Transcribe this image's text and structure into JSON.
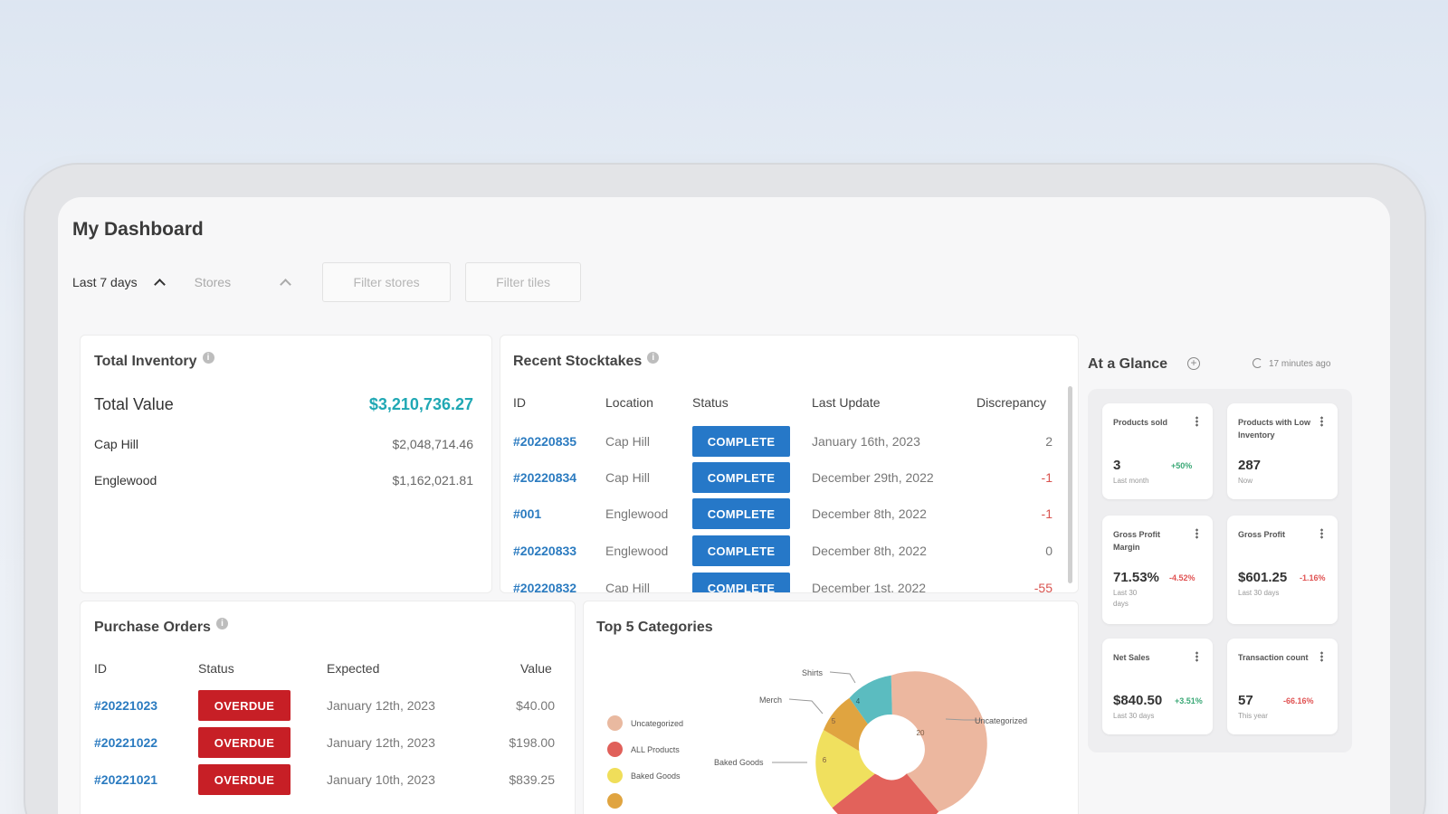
{
  "page_title": "My Dashboard",
  "filters": {
    "date_range": "Last 7 days",
    "stores_dropdown": "Stores",
    "filter_stores_placeholder": "Filter stores",
    "filter_tiles_placeholder": "Filter tiles"
  },
  "total_inventory": {
    "title": "Total Inventory",
    "total_label": "Total Value",
    "total_value": "$3,210,736.27",
    "rows": [
      {
        "name": "Cap Hill",
        "value": "$2,048,714.46"
      },
      {
        "name": "Englewood",
        "value": "$1,162,021.81"
      }
    ]
  },
  "recent_stocktakes": {
    "title": "Recent Stocktakes",
    "headers": {
      "id": "ID",
      "location": "Location",
      "status": "Status",
      "last_update": "Last Update",
      "discrepancy": "Discrepancy"
    },
    "rows": [
      {
        "id": "#20220835",
        "location": "Cap Hill",
        "status": "COMPLETE",
        "last_update": "January 16th, 2023",
        "discrepancy": "2"
      },
      {
        "id": "#20220834",
        "location": "Cap Hill",
        "status": "COMPLETE",
        "last_update": "December 29th, 2022",
        "discrepancy": "-1"
      },
      {
        "id": "#001",
        "location": "Englewood",
        "status": "COMPLETE",
        "last_update": "December 8th, 2022",
        "discrepancy": "-1"
      },
      {
        "id": "#20220833",
        "location": "Englewood",
        "status": "COMPLETE",
        "last_update": "December 8th, 2022",
        "discrepancy": "0"
      },
      {
        "id": "#20220832",
        "location": "Cap Hill",
        "status": "COMPLETE",
        "last_update": "December 1st, 2022",
        "discrepancy": "-55"
      }
    ]
  },
  "purchase_orders": {
    "title": "Purchase Orders",
    "headers": {
      "id": "ID",
      "status": "Status",
      "expected": "Expected",
      "value": "Value"
    },
    "rows": [
      {
        "id": "#20221023",
        "status": "OVERDUE",
        "expected": "January 12th, 2023",
        "value": "$40.00"
      },
      {
        "id": "#20221022",
        "status": "OVERDUE",
        "expected": "January 12th, 2023",
        "value": "$198.00"
      },
      {
        "id": "#20221021",
        "status": "OVERDUE",
        "expected": "January 10th, 2023",
        "value": "$839.25"
      }
    ]
  },
  "top_categories": {
    "title": "Top 5 Categories",
    "legend": [
      {
        "label": "Uncategorized",
        "color": "#e9b9a0"
      },
      {
        "label": "ALL Products",
        "color": "#e0605a"
      },
      {
        "label": "Baked Goods",
        "color": "#f0de5a"
      }
    ],
    "callouts": {
      "shirts": "Shirts",
      "merch": "Merch",
      "baked_goods": "Baked Goods",
      "uncategorized": "Uncategorized"
    },
    "segment_labels": {
      "uncategorized": "20",
      "shirts": "4",
      "merch": "5",
      "baked_goods": "6"
    },
    "colors": {
      "uncategorized": "#ecb79f",
      "all_products": "#e2625b",
      "baked_goods": "#f0e05e",
      "merch": "#e0a440",
      "shirts": "#5bbcc0"
    }
  },
  "at_a_glance": {
    "title": "At a Glance",
    "updated": "17 minutes ago",
    "tiles": [
      {
        "label": "Products sold",
        "value": "3",
        "change": "+50%",
        "change_type": "pos",
        "sub": "Last month"
      },
      {
        "label": "Products with Low Inventory",
        "value": "287",
        "change": "",
        "change_type": "pos",
        "sub": "Now"
      },
      {
        "label": "Gross Profit Margin",
        "value": "71.53%",
        "change": "-4.52%",
        "change_type": "neg",
        "sub": "Last 30 days"
      },
      {
        "label": "Gross Profit",
        "value": "$601.25",
        "change": "-1.16%",
        "change_type": "neg",
        "sub": "Last 30 days"
      },
      {
        "label": "Net Sales",
        "value": "$840.50",
        "change": "+3.51%",
        "change_type": "pos",
        "sub": "Last 30 days"
      },
      {
        "label": "Transaction count",
        "value": "57",
        "change": "-66.16%",
        "change_type": "neg",
        "sub": "This year"
      }
    ]
  }
}
